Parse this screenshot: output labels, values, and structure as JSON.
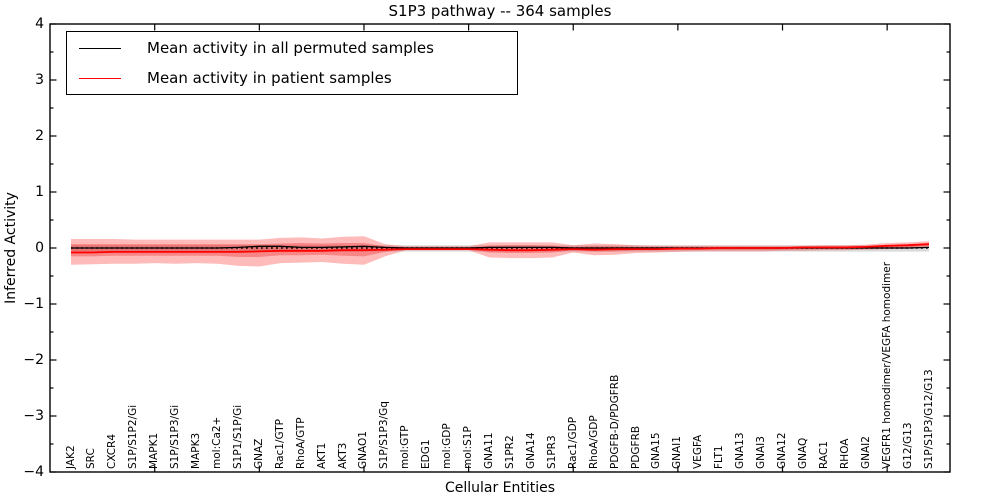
{
  "title": "S1P3 pathway -- 364 samples",
  "axes": {
    "ylabel": "Inferred Activity",
    "xlabel": "Cellular Entities",
    "yticks": [
      4,
      3,
      2,
      1,
      0,
      -1,
      -2,
      -3,
      -4
    ],
    "ylim": [
      -4,
      4
    ],
    "xtick_step": 5
  },
  "legend": {
    "entries": [
      {
        "label": "Mean activity in all permuted samples",
        "color": "#000000"
      },
      {
        "label": "Mean activity in patient samples",
        "color": "#ff0000"
      }
    ]
  },
  "chart_data": {
    "type": "line",
    "title": "S1P3 pathway -- 364 samples",
    "xlabel": "Cellular Entities",
    "ylabel": "Inferred Activity",
    "ylim": [
      -4,
      4
    ],
    "grid": false,
    "legend_position": "upper left",
    "categories": [
      "JAK2",
      "SRC",
      "CXCR4",
      "S1P/S1P2/Gi",
      "MAPK1",
      "S1P/S1P3/Gi",
      "MAPK3",
      "mol:Ca2+",
      "S1P1/S1P/Gi",
      "GNAZ",
      "Rac1/GTP",
      "RhoA/GTP",
      "AKT1",
      "AKT3",
      "GNAO1",
      "S1P/S1P3/Gq",
      "mol:GTP",
      "EDG1",
      "mol:GDP",
      "mol:S1P",
      "GNA11",
      "S1PR2",
      "GNA14",
      "S1PR3",
      "Rac1/GDP",
      "RhoA/GDP",
      "PDGFB-D/PDGFRB",
      "PDGFRB",
      "GNA15",
      "GNAI1",
      "VEGFA",
      "FLT1",
      "GNA13",
      "GNAI3",
      "GNA12",
      "GNAQ",
      "RAC1",
      "RHOA",
      "GNAI2",
      "VEGFR1 homodimer/VEGFA homodimer",
      "G12/G13",
      "S1P/S1P3/G12/G13"
    ],
    "zero_line": 0,
    "series": [
      {
        "name": "Mean activity in all permuted samples",
        "color": "#000000",
        "values": [
          0,
          0,
          0,
          0,
          0,
          0,
          0,
          0,
          0.01,
          0.03,
          0.03,
          0.01,
          0.01,
          0.02,
          0.03,
          0.01,
          0,
          0,
          0,
          0,
          0.01,
          0.01,
          0.01,
          0.01,
          0,
          0,
          0,
          0,
          0,
          0,
          0,
          0,
          0,
          0,
          0,
          0,
          0,
          0,
          0,
          0,
          0,
          0.01
        ]
      },
      {
        "name": "Mean activity in patient samples",
        "color": "#ff0000",
        "values": [
          -0.08,
          -0.08,
          -0.07,
          -0.07,
          -0.07,
          -0.07,
          -0.07,
          -0.07,
          -0.07,
          -0.06,
          -0.05,
          -0.05,
          -0.05,
          -0.04,
          -0.04,
          -0.03,
          -0.02,
          -0.02,
          -0.02,
          -0.02,
          -0.03,
          -0.04,
          -0.04,
          -0.03,
          -0.02,
          -0.03,
          -0.02,
          -0.02,
          -0.02,
          -0.01,
          -0.01,
          0,
          0,
          0,
          0,
          0.01,
          0.01,
          0.01,
          0.02,
          0.04,
          0.05,
          0.07
        ]
      }
    ],
    "bands": [
      {
        "name": "permuted-samples-std-band",
        "color": "rgba(125,125,125,0.28)",
        "upper": 0.05,
        "lower": -0.065
      },
      {
        "name": "patient-samples-std-band",
        "color": "rgba(255,25,25,0.30)",
        "upper": [
          0.16,
          0.16,
          0.16,
          0.15,
          0.15,
          0.15,
          0.15,
          0.15,
          0.15,
          0.15,
          0.18,
          0.19,
          0.17,
          0.2,
          0.21,
          0.07,
          0.03,
          0.03,
          0.03,
          0.03,
          0.1,
          0.1,
          0.1,
          0.1,
          0.05,
          0.08,
          0.07,
          0.05,
          0.04,
          0.04,
          0.04,
          0.04,
          0.04,
          0.04,
          0.04,
          0.04,
          0.05,
          0.05,
          0.06,
          0.09,
          0.1,
          0.12
        ],
        "lower": [
          -0.3,
          -0.29,
          -0.28,
          -0.28,
          -0.27,
          -0.28,
          -0.27,
          -0.28,
          -0.32,
          -0.33,
          -0.27,
          -0.26,
          -0.25,
          -0.28,
          -0.3,
          -0.15,
          -0.04,
          -0.04,
          -0.04,
          -0.04,
          -0.17,
          -0.18,
          -0.18,
          -0.17,
          -0.08,
          -0.13,
          -0.12,
          -0.09,
          -0.08,
          -0.07,
          -0.06,
          -0.06,
          -0.06,
          -0.06,
          -0.05,
          -0.05,
          -0.04,
          -0.04,
          -0.03,
          -0.02,
          -0.01,
          0.0
        ]
      },
      {
        "name": "patient-samples-sem-band",
        "color": "rgba(235,0,0,0.28)",
        "upper": [
          0.07,
          0.07,
          0.07,
          0.07,
          0.07,
          0.07,
          0.07,
          0.07,
          0.07,
          0.07,
          0.08,
          0.09,
          0.08,
          0.09,
          0.09,
          0.03,
          0.01,
          0.01,
          0.01,
          0.01,
          0.04,
          0.05,
          0.05,
          0.04,
          0.02,
          0.03,
          0.03,
          0.02,
          0.02,
          0.02,
          0.02,
          0.02,
          0.02,
          0.02,
          0.02,
          0.02,
          0.02,
          0.02,
          0.03,
          0.05,
          0.06,
          0.09
        ],
        "lower": [
          -0.15,
          -0.15,
          -0.14,
          -0.14,
          -0.14,
          -0.14,
          -0.14,
          -0.14,
          -0.16,
          -0.16,
          -0.13,
          -0.13,
          -0.12,
          -0.14,
          -0.15,
          -0.07,
          -0.02,
          -0.02,
          -0.02,
          -0.02,
          -0.08,
          -0.09,
          -0.09,
          -0.08,
          -0.04,
          -0.06,
          -0.06,
          -0.04,
          -0.04,
          -0.03,
          -0.03,
          -0.03,
          -0.03,
          -0.03,
          -0.03,
          -0.02,
          -0.02,
          -0.02,
          -0.01,
          0.0,
          0.01,
          0.04
        ]
      }
    ]
  }
}
